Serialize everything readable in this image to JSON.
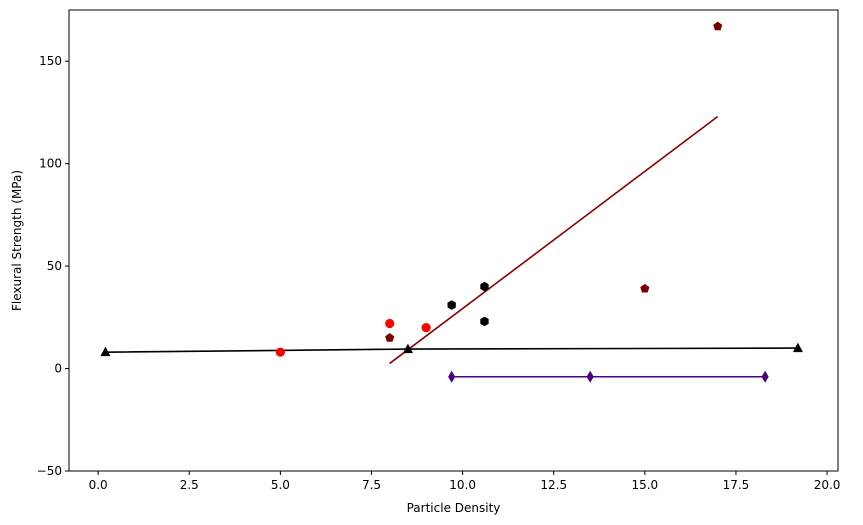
{
  "chart_data": {
    "type": "scatter",
    "title": "",
    "xlabel": "Particle Density",
    "ylabel": "Flexural Strength (MPa)",
    "xlim": [
      -0.8,
      20.3
    ],
    "ylim": [
      -50,
      175
    ],
    "xticks": [
      0.0,
      2.5,
      5.0,
      7.5,
      10.0,
      12.5,
      15.0,
      17.5,
      20.0
    ],
    "xtick_labels": [
      "0.0",
      "2.5",
      "5.0",
      "7.5",
      "10.0",
      "12.5",
      "15.0",
      "17.5",
      "20.0"
    ],
    "yticks": [
      -50,
      0,
      50,
      100,
      150
    ],
    "ytick_labels": [
      "−50",
      "0",
      "50",
      "100",
      "150"
    ],
    "grid": false,
    "legend": null,
    "colors": {
      "red": "#ff0000",
      "black": "#000000",
      "darkred": "#8b0000",
      "maroon": "#7a0000",
      "indigo": "#4b0082"
    },
    "series": [
      {
        "marker": "circle",
        "color": "#ff0000",
        "points": [
          [
            5.0,
            8
          ],
          [
            8.0,
            22
          ],
          [
            9.0,
            20
          ]
        ]
      },
      {
        "marker": "hexagon",
        "color": "#000000",
        "points": [
          [
            9.7,
            31
          ],
          [
            10.6,
            40
          ],
          [
            10.6,
            23
          ]
        ]
      },
      {
        "marker": "pentagon",
        "color": "#7a0000",
        "points": [
          [
            8.0,
            15
          ],
          [
            15.0,
            39
          ],
          [
            17.0,
            167
          ]
        ]
      },
      {
        "marker": "triangle",
        "color": "#000000",
        "line": true,
        "points": [
          [
            0.2,
            8
          ],
          [
            8.5,
            9.5
          ],
          [
            19.2,
            10
          ]
        ]
      },
      {
        "marker": "diamond",
        "color": "#4b0082",
        "line": true,
        "points": [
          [
            9.7,
            -4
          ],
          [
            13.5,
            -4
          ],
          [
            18.3,
            -4
          ]
        ]
      },
      {
        "marker": "none",
        "color": "#8b0000",
        "line": true,
        "points": [
          [
            8.0,
            2.5
          ],
          [
            17.0,
            123
          ]
        ]
      }
    ]
  }
}
